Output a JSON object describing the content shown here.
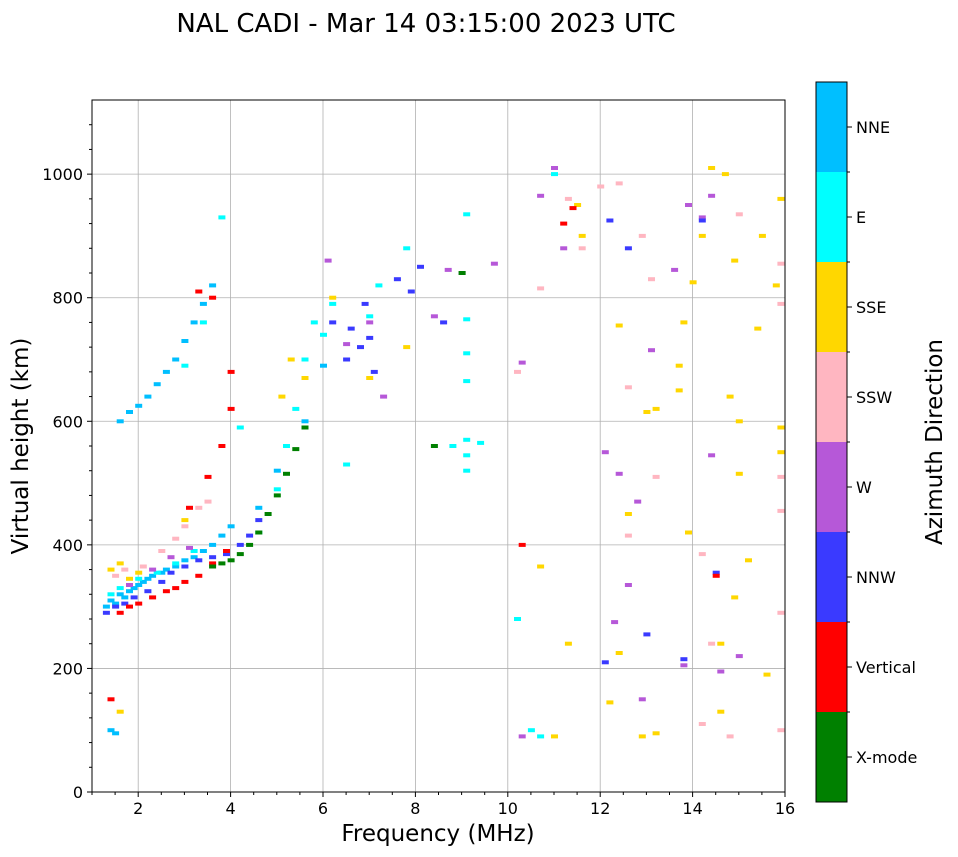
{
  "chart_data": {
    "type": "scatter",
    "title": "NAL CADI - Mar 14 03:15:00 2023 UTC",
    "xlabel": "Frequency (MHz)",
    "ylabel": "Virtual height (km)",
    "xlim": [
      1,
      16
    ],
    "ylim": [
      0,
      1120
    ],
    "x_ticks": [
      2,
      4,
      6,
      8,
      10,
      12,
      14,
      16
    ],
    "y_ticks": [
      0,
      200,
      400,
      600,
      800,
      1000
    ],
    "grid": true,
    "colorbar": {
      "title": "Azimuth Direction",
      "categories": [
        "X-mode",
        "Vertical",
        "NNW",
        "W",
        "SSW",
        "SSE",
        "E",
        "NNE"
      ],
      "colors": [
        "#008000",
        "#ff0000",
        "#3a3aff",
        "#b658d8",
        "#ffb6c1",
        "#ffd700",
        "#00ffff",
        "#00bfff"
      ]
    },
    "series": [
      {
        "name": "NNE",
        "points": [
          [
            1.3,
            300
          ],
          [
            1.4,
            310
          ],
          [
            1.5,
            305
          ],
          [
            1.6,
            320
          ],
          [
            1.7,
            315
          ],
          [
            1.8,
            325
          ],
          [
            1.9,
            330
          ],
          [
            2.0,
            335
          ],
          [
            2.1,
            340
          ],
          [
            2.2,
            345
          ],
          [
            2.3,
            350
          ],
          [
            2.5,
            355
          ],
          [
            2.6,
            360
          ],
          [
            2.8,
            365
          ],
          [
            3.0,
            375
          ],
          [
            3.2,
            380
          ],
          [
            3.4,
            390
          ],
          [
            3.6,
            400
          ],
          [
            3.8,
            415
          ],
          [
            4.0,
            430
          ],
          [
            1.6,
            600
          ],
          [
            1.8,
            615
          ],
          [
            2.0,
            625
          ],
          [
            2.2,
            640
          ],
          [
            2.4,
            660
          ],
          [
            2.6,
            680
          ],
          [
            2.8,
            700
          ],
          [
            3.0,
            730
          ],
          [
            3.2,
            760
          ],
          [
            3.4,
            790
          ],
          [
            3.6,
            820
          ],
          [
            1.5,
            95
          ],
          [
            1.4,
            100
          ],
          [
            4.6,
            460
          ],
          [
            5.0,
            520
          ],
          [
            5.6,
            600
          ],
          [
            6.0,
            690
          ]
        ]
      },
      {
        "name": "E",
        "points": [
          [
            1.4,
            320
          ],
          [
            1.6,
            330
          ],
          [
            2.0,
            345
          ],
          [
            2.4,
            355
          ],
          [
            2.8,
            370
          ],
          [
            3.2,
            390
          ],
          [
            3.0,
            690
          ],
          [
            3.4,
            760
          ],
          [
            3.8,
            930
          ],
          [
            4.2,
            590
          ],
          [
            4.6,
            420
          ],
          [
            5.0,
            490
          ],
          [
            5.2,
            560
          ],
          [
            5.4,
            620
          ],
          [
            5.6,
            700
          ],
          [
            5.8,
            760
          ],
          [
            6.0,
            740
          ],
          [
            6.2,
            790
          ],
          [
            6.5,
            530
          ],
          [
            7.0,
            770
          ],
          [
            7.2,
            820
          ],
          [
            7.8,
            880
          ],
          [
            9.1,
            520
          ],
          [
            9.1,
            545
          ],
          [
            9.1,
            570
          ],
          [
            9.1,
            665
          ],
          [
            9.1,
            710
          ],
          [
            9.1,
            765
          ],
          [
            9.1,
            935
          ],
          [
            9.4,
            565
          ],
          [
            10.2,
            280
          ],
          [
            10.5,
            100
          ],
          [
            10.7,
            90
          ],
          [
            11.0,
            1000
          ],
          [
            8.8,
            560
          ]
        ]
      },
      {
        "name": "SSE",
        "points": [
          [
            1.4,
            360
          ],
          [
            1.6,
            370
          ],
          [
            1.8,
            345
          ],
          [
            2.0,
            355
          ],
          [
            3.0,
            440
          ],
          [
            1.6,
            130
          ],
          [
            5.1,
            640
          ],
          [
            5.3,
            700
          ],
          [
            5.6,
            670
          ],
          [
            6.2,
            800
          ],
          [
            7.0,
            670
          ],
          [
            7.8,
            720
          ],
          [
            10.7,
            365
          ],
          [
            11.0,
            90
          ],
          [
            11.3,
            240
          ],
          [
            11.5,
            950
          ],
          [
            11.6,
            900
          ],
          [
            12.2,
            145
          ],
          [
            12.4,
            225
          ],
          [
            12.4,
            755
          ],
          [
            12.6,
            450
          ],
          [
            12.9,
            90
          ],
          [
            13.0,
            615
          ],
          [
            13.2,
            95
          ],
          [
            13.2,
            620
          ],
          [
            13.7,
            650
          ],
          [
            13.7,
            690
          ],
          [
            13.8,
            760
          ],
          [
            13.9,
            420
          ],
          [
            14.0,
            825
          ],
          [
            14.2,
            900
          ],
          [
            14.4,
            1010
          ],
          [
            14.6,
            130
          ],
          [
            14.6,
            240
          ],
          [
            14.7,
            1000
          ],
          [
            14.8,
            640
          ],
          [
            14.9,
            860
          ],
          [
            15.0,
            600
          ],
          [
            15.0,
            515
          ],
          [
            15.2,
            375
          ],
          [
            15.4,
            750
          ],
          [
            15.5,
            900
          ],
          [
            15.6,
            190
          ],
          [
            15.8,
            820
          ],
          [
            15.9,
            590
          ],
          [
            15.9,
            550
          ],
          [
            15.9,
            960
          ],
          [
            14.9,
            315
          ]
        ]
      },
      {
        "name": "SSW",
        "points": [
          [
            1.5,
            350
          ],
          [
            1.7,
            360
          ],
          [
            2.1,
            365
          ],
          [
            2.5,
            390
          ],
          [
            2.8,
            410
          ],
          [
            3.0,
            430
          ],
          [
            3.3,
            460
          ],
          [
            3.5,
            470
          ],
          [
            10.2,
            680
          ],
          [
            10.7,
            815
          ],
          [
            11.3,
            960
          ],
          [
            11.6,
            880
          ],
          [
            12.4,
            985
          ],
          [
            12.6,
            415
          ],
          [
            12.6,
            655
          ],
          [
            12.9,
            900
          ],
          [
            13.1,
            830
          ],
          [
            13.2,
            510
          ],
          [
            14.2,
            110
          ],
          [
            14.2,
            385
          ],
          [
            14.4,
            240
          ],
          [
            14.8,
            90
          ],
          [
            15.0,
            935
          ],
          [
            15.9,
            100
          ],
          [
            15.9,
            290
          ],
          [
            15.9,
            455
          ],
          [
            15.9,
            510
          ],
          [
            15.9,
            790
          ],
          [
            15.9,
            855
          ],
          [
            12.0,
            980
          ]
        ]
      },
      {
        "name": "W",
        "points": [
          [
            1.8,
            335
          ],
          [
            2.3,
            360
          ],
          [
            2.7,
            380
          ],
          [
            3.1,
            395
          ],
          [
            6.1,
            860
          ],
          [
            6.5,
            725
          ],
          [
            7.0,
            760
          ],
          [
            7.3,
            640
          ],
          [
            8.4,
            770
          ],
          [
            8.7,
            845
          ],
          [
            9.0,
            840
          ],
          [
            9.7,
            855
          ],
          [
            10.3,
            90
          ],
          [
            10.3,
            695
          ],
          [
            10.7,
            965
          ],
          [
            11.0,
            1010
          ],
          [
            11.2,
            880
          ],
          [
            12.1,
            550
          ],
          [
            12.3,
            275
          ],
          [
            12.4,
            515
          ],
          [
            12.6,
            335
          ],
          [
            12.8,
            470
          ],
          [
            12.9,
            150
          ],
          [
            13.1,
            715
          ],
          [
            13.6,
            845
          ],
          [
            13.8,
            205
          ],
          [
            13.9,
            950
          ],
          [
            14.2,
            930
          ],
          [
            14.4,
            545
          ],
          [
            14.6,
            195
          ],
          [
            14.4,
            965
          ],
          [
            15.0,
            220
          ]
        ]
      },
      {
        "name": "NNW",
        "points": [
          [
            1.3,
            290
          ],
          [
            1.5,
            300
          ],
          [
            1.7,
            305
          ],
          [
            1.9,
            315
          ],
          [
            2.2,
            325
          ],
          [
            2.5,
            340
          ],
          [
            2.7,
            355
          ],
          [
            3.0,
            365
          ],
          [
            3.3,
            375
          ],
          [
            3.6,
            380
          ],
          [
            3.9,
            385
          ],
          [
            4.2,
            400
          ],
          [
            4.4,
            415
          ],
          [
            4.6,
            440
          ],
          [
            6.2,
            760
          ],
          [
            6.5,
            700
          ],
          [
            6.6,
            750
          ],
          [
            6.8,
            720
          ],
          [
            6.9,
            790
          ],
          [
            7.0,
            735
          ],
          [
            7.1,
            680
          ],
          [
            7.6,
            830
          ],
          [
            7.9,
            810
          ],
          [
            8.1,
            850
          ],
          [
            8.6,
            760
          ],
          [
            12.1,
            210
          ],
          [
            12.2,
            925
          ],
          [
            12.6,
            880
          ],
          [
            13.0,
            255
          ],
          [
            13.8,
            215
          ],
          [
            14.2,
            925
          ],
          [
            14.5,
            355
          ]
        ]
      },
      {
        "name": "Vertical",
        "points": [
          [
            1.4,
            150
          ],
          [
            1.6,
            290
          ],
          [
            1.8,
            300
          ],
          [
            2.0,
            305
          ],
          [
            2.3,
            315
          ],
          [
            2.6,
            325
          ],
          [
            2.8,
            330
          ],
          [
            3.0,
            340
          ],
          [
            3.3,
            350
          ],
          [
            3.6,
            370
          ],
          [
            3.9,
            390
          ],
          [
            3.1,
            460
          ],
          [
            3.5,
            510
          ],
          [
            3.8,
            560
          ],
          [
            4.0,
            620
          ],
          [
            4.0,
            680
          ],
          [
            3.3,
            810
          ],
          [
            3.6,
            800
          ],
          [
            11.2,
            920
          ],
          [
            11.4,
            945
          ],
          [
            10.3,
            400
          ],
          [
            14.5,
            350
          ]
        ]
      },
      {
        "name": "X-mode",
        "points": [
          [
            3.6,
            365
          ],
          [
            3.8,
            370
          ],
          [
            4.0,
            375
          ],
          [
            4.2,
            385
          ],
          [
            4.4,
            400
          ],
          [
            4.6,
            420
          ],
          [
            4.8,
            450
          ],
          [
            5.0,
            480
          ],
          [
            5.2,
            515
          ],
          [
            5.4,
            555
          ],
          [
            5.6,
            590
          ],
          [
            8.4,
            560
          ],
          [
            9.0,
            840
          ]
        ]
      }
    ]
  }
}
